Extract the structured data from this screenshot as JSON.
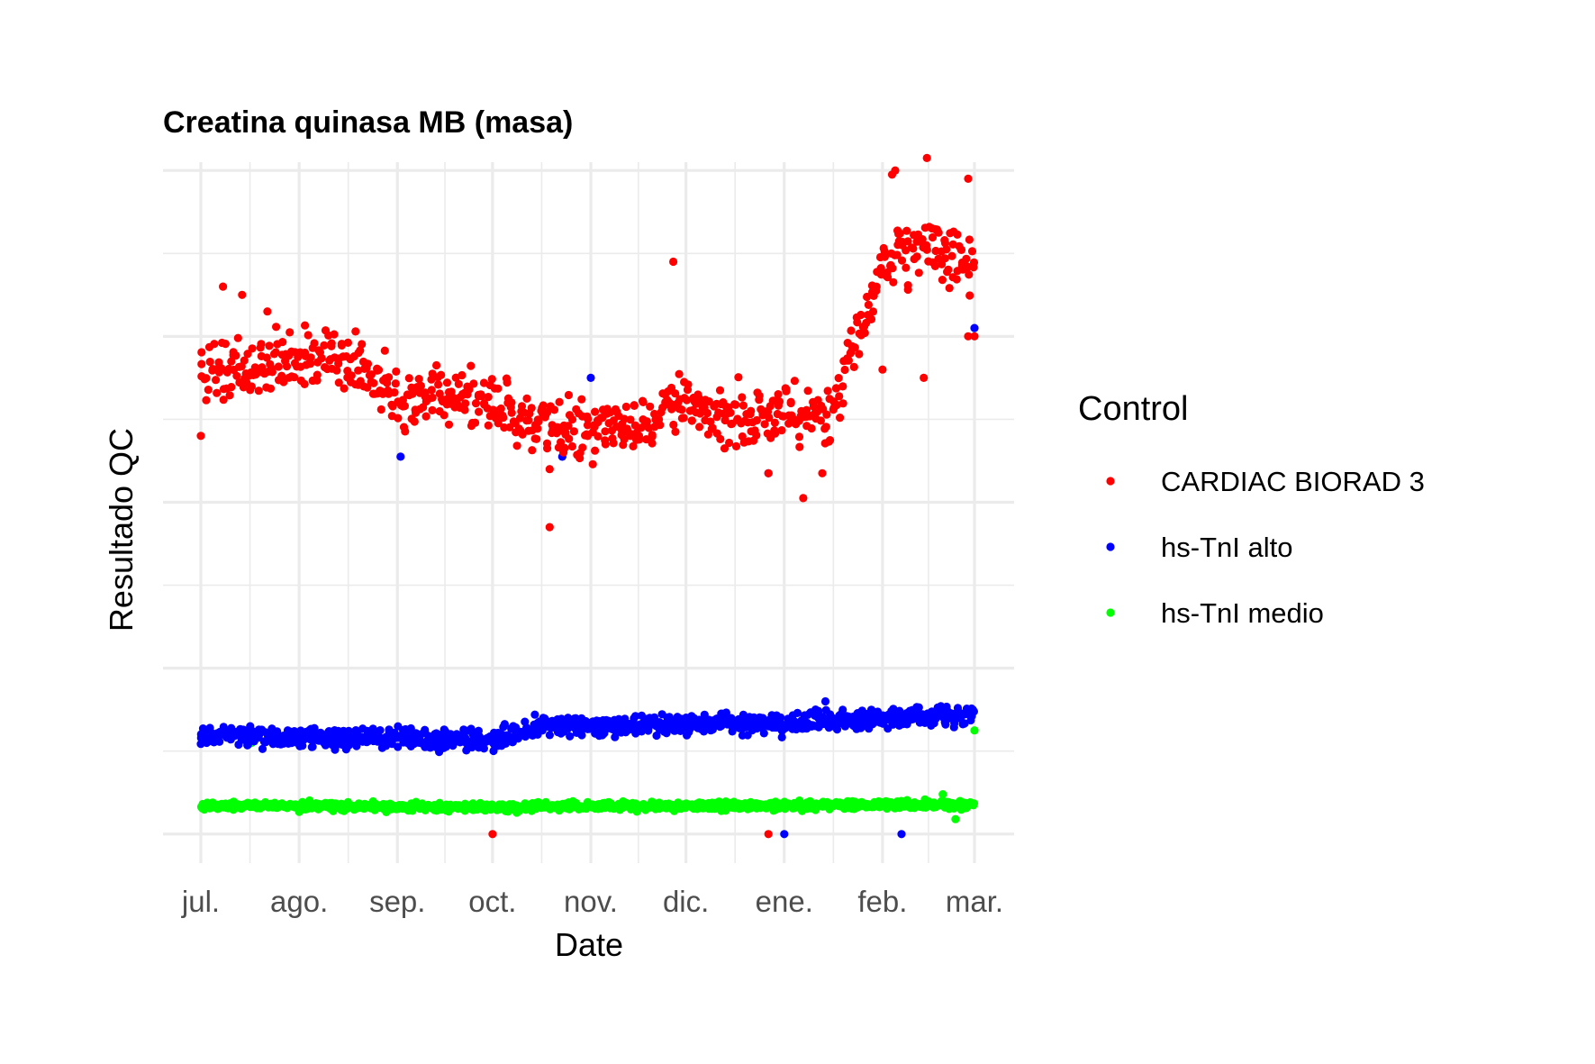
{
  "chart_data": {
    "type": "scatter",
    "title": "Creatina quinasa MB (masa)",
    "xlabel": "Date",
    "ylabel": "Resultado QC",
    "x_range": [
      "2023-07-01",
      "2024-03-01"
    ],
    "x_ticks": [
      {
        "date": "2023-07-01",
        "label": "jul."
      },
      {
        "date": "2023-08-01",
        "label": "ago."
      },
      {
        "date": "2023-09-01",
        "label": "sep."
      },
      {
        "date": "2023-10-01",
        "label": "oct."
      },
      {
        "date": "2023-11-01",
        "label": "nov."
      },
      {
        "date": "2023-12-01",
        "label": "dic."
      },
      {
        "date": "2024-01-01",
        "label": "ene."
      },
      {
        "date": "2024-02-01",
        "label": "feb."
      },
      {
        "date": "2024-03-01",
        "label": "mar."
      }
    ],
    "y_tick_labels": "not shown",
    "ylim": [
      -0.35,
      8.1
    ],
    "grid": true,
    "legend": {
      "title": "Control",
      "position": "right",
      "entries": [
        {
          "label": "CARDIAC BIORAD 3",
          "color": "#ff0000"
        },
        {
          "label": "hs-TnI alto",
          "color": "#0000ff"
        },
        {
          "label": "hs-TnI medio",
          "color": "#00ff00"
        }
      ]
    },
    "series": [
      {
        "label": "CARDIAC BIORAD 3",
        "color": "#ff0000",
        "trend": [
          [
            "2023-07-01",
            5.6
          ],
          [
            "2023-07-15",
            5.6
          ],
          [
            "2023-08-01",
            5.8
          ],
          [
            "2023-08-15",
            5.7
          ],
          [
            "2023-09-01",
            5.3
          ],
          [
            "2023-09-15",
            5.25
          ],
          [
            "2023-10-01",
            5.2
          ],
          [
            "2023-10-15",
            4.95
          ],
          [
            "2023-11-01",
            4.85
          ],
          [
            "2023-11-15",
            4.95
          ],
          [
            "2023-12-01",
            5.2
          ],
          [
            "2023-12-15",
            5.05
          ],
          [
            "2024-01-01",
            5.1
          ],
          [
            "2024-01-15",
            5.0
          ],
          [
            "2024-02-01",
            6.9
          ],
          [
            "2024-02-15",
            7.05
          ],
          [
            "2024-03-01",
            6.9
          ]
        ],
        "spread": 0.18,
        "points_per_day": 3,
        "outliers": [
          [
            "2023-07-01",
            4.8
          ],
          [
            "2023-07-08",
            6.6
          ],
          [
            "2023-07-14",
            6.5
          ],
          [
            "2023-07-22",
            6.3
          ],
          [
            "2023-10-19",
            3.7
          ],
          [
            "2023-10-19",
            4.4
          ],
          [
            "2023-11-27",
            6.9
          ],
          [
            "2023-12-27",
            4.35
          ],
          [
            "2024-01-07",
            4.05
          ],
          [
            "2024-01-13",
            4.35
          ],
          [
            "2024-02-01",
            5.6
          ],
          [
            "2024-02-04",
            7.95
          ],
          [
            "2024-02-05",
            8.0
          ],
          [
            "2024-02-14",
            5.5
          ],
          [
            "2024-02-15",
            8.15
          ],
          [
            "2024-02-28",
            7.9
          ],
          [
            "2024-02-28",
            6.0
          ],
          [
            "2024-03-01",
            6.0
          ],
          [
            "2023-10-01",
            0.0
          ],
          [
            "2023-12-27",
            0.0
          ]
        ]
      },
      {
        "label": "hs-TnI alto",
        "color": "#0000ff",
        "trend": [
          [
            "2023-07-01",
            1.2
          ],
          [
            "2023-08-01",
            1.15
          ],
          [
            "2023-09-01",
            1.15
          ],
          [
            "2023-10-01",
            1.12
          ],
          [
            "2023-10-15",
            1.3
          ],
          [
            "2023-11-01",
            1.3
          ],
          [
            "2023-12-01",
            1.33
          ],
          [
            "2024-01-01",
            1.33
          ],
          [
            "2024-02-01",
            1.38
          ],
          [
            "2024-03-01",
            1.45
          ]
        ],
        "spread": 0.06,
        "points_per_day": 4,
        "outliers": [
          [
            "2023-09-02",
            4.55
          ],
          [
            "2023-10-23",
            4.55
          ],
          [
            "2023-11-01",
            5.5
          ],
          [
            "2023-12-27",
            4.35
          ],
          [
            "2024-03-01",
            6.1
          ],
          [
            "2023-10-17",
            1.4
          ],
          [
            "2024-01-14",
            1.6
          ],
          [
            "2024-01-01",
            0.0
          ],
          [
            "2024-02-07",
            0.0
          ]
        ]
      },
      {
        "label": "hs-TnI medio",
        "color": "#00ff00",
        "trend": [
          [
            "2023-07-01",
            0.35
          ],
          [
            "2023-10-01",
            0.32
          ],
          [
            "2023-11-01",
            0.34
          ],
          [
            "2024-01-01",
            0.34
          ],
          [
            "2024-03-01",
            0.36
          ]
        ],
        "spread": 0.025,
        "points_per_day": 4,
        "outliers": [
          [
            "2023-07-17",
            1.1
          ],
          [
            "2024-02-24",
            0.18
          ],
          [
            "2024-03-01",
            1.25
          ],
          [
            "2024-02-20",
            0.48
          ]
        ]
      }
    ]
  }
}
